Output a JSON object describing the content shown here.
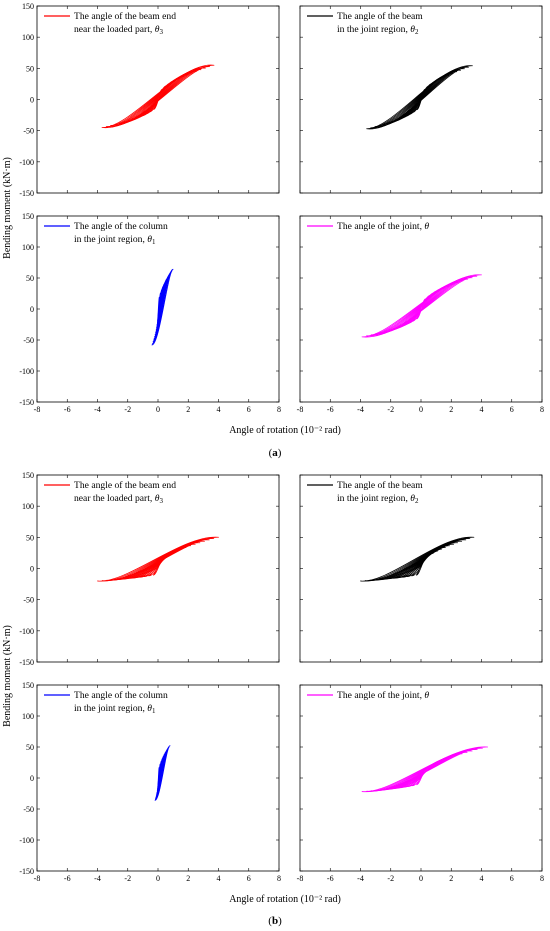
{
  "figure": {
    "ylabel": "Bending moment (kN·m)",
    "xlabel": "Angle of rotation (10⁻² rad)",
    "captions": [
      {
        "open": "(",
        "letter": "a",
        "close": ")"
      },
      {
        "open": "(",
        "letter": "b",
        "close": ")"
      }
    ]
  },
  "chart_data": [
    {
      "type": "line",
      "panel": "a-top-left",
      "xlim": [
        -8,
        8
      ],
      "ylim": [
        -150,
        150
      ],
      "xticks": [
        -8,
        -6,
        -4,
        -2,
        0,
        2,
        4,
        6,
        8
      ],
      "yticks": [
        -150,
        -100,
        -50,
        0,
        50,
        100,
        150
      ],
      "series": [
        {
          "name_line1": "The angle of the beam end",
          "name_line2": "near the loaded part, ",
          "symbol": "θ",
          "subscript": "3",
          "color": "#ff0000",
          "loop": {
            "x_min": -3.7,
            "x_max": 3.7,
            "y_at_min": -45,
            "y_at_max": 55,
            "y_max": 66,
            "y_min": -57,
            "half_width": 18,
            "cycles": 13
          }
        }
      ]
    },
    {
      "type": "line",
      "panel": "a-top-right",
      "xlim": [
        -8,
        8
      ],
      "ylim": [
        -150,
        150
      ],
      "xticks": [
        -8,
        -6,
        -4,
        -2,
        0,
        2,
        4,
        6,
        8
      ],
      "yticks": [
        -150,
        -100,
        -50,
        0,
        50,
        100,
        150
      ],
      "series": [
        {
          "name_line1": "The angle of the beam",
          "name_line2": "in the joint region, ",
          "symbol": "θ",
          "subscript": "2",
          "color": "#000000",
          "loop": {
            "x_min": -3.6,
            "x_max": 3.4,
            "y_at_min": -47,
            "y_at_max": 54,
            "y_max": 66,
            "y_min": -57,
            "half_width": 16,
            "cycles": 13
          }
        }
      ]
    },
    {
      "type": "line",
      "panel": "a-bottom-left",
      "xlim": [
        -8,
        8
      ],
      "ylim": [
        -150,
        150
      ],
      "xticks": [
        -8,
        -6,
        -4,
        -2,
        0,
        2,
        4,
        6,
        8
      ],
      "yticks": [
        -150,
        -100,
        -50,
        0,
        50,
        100,
        150
      ],
      "series": [
        {
          "name_line1": "The angle of the column",
          "name_line2": "in the joint region, ",
          "symbol": "θ",
          "subscript": "1",
          "color": "#0000ff",
          "loop": {
            "x_min": -0.4,
            "x_max": 1.0,
            "y_at_min": -58,
            "y_at_max": 64,
            "y_max": 66,
            "y_min": -60,
            "half_width": 5,
            "cycles": 12
          }
        }
      ]
    },
    {
      "type": "line",
      "panel": "a-bottom-right",
      "xlim": [
        -8,
        8
      ],
      "ylim": [
        -150,
        150
      ],
      "xticks": [
        -8,
        -6,
        -4,
        -2,
        0,
        2,
        4,
        6,
        8
      ],
      "yticks": [
        -150,
        -100,
        -50,
        0,
        50,
        100,
        150
      ],
      "series": [
        {
          "name_line1": "The angle of the joint, ",
          "name_line2": "",
          "symbol": "θ",
          "subscript": "",
          "color": "#ff00ff",
          "loop": {
            "x_min": -3.9,
            "x_max": 4.0,
            "y_at_min": -45,
            "y_at_max": 55,
            "y_max": 66,
            "y_min": -57,
            "half_width": 18,
            "cycles": 13
          }
        }
      ]
    },
    {
      "type": "line",
      "panel": "b-top-left",
      "xlim": [
        -8,
        8
      ],
      "ylim": [
        -150,
        150
      ],
      "xticks": [
        -8,
        -6,
        -4,
        -2,
        0,
        2,
        4,
        6,
        8
      ],
      "yticks": [
        -150,
        -100,
        -50,
        0,
        50,
        100,
        150
      ],
      "series": [
        {
          "name_line1": "The angle of the beam end",
          "name_line2": "near the loaded part, ",
          "symbol": "θ",
          "subscript": "3",
          "color": "#ff0000",
          "loop": {
            "x_min": -4.0,
            "x_max": 4.0,
            "y_at_min": -20,
            "y_at_max": 50,
            "y_max": 63,
            "y_min": -37,
            "half_width": 12,
            "cycles": 13
          }
        }
      ]
    },
    {
      "type": "line",
      "panel": "b-top-right",
      "xlim": [
        -8,
        8
      ],
      "ylim": [
        -150,
        150
      ],
      "xticks": [
        -8,
        -6,
        -4,
        -2,
        0,
        2,
        4,
        6,
        8
      ],
      "yticks": [
        -150,
        -100,
        -50,
        0,
        50,
        100,
        150
      ],
      "series": [
        {
          "name_line1": "The angle of the beam",
          "name_line2": "in the joint region, ",
          "symbol": "θ",
          "subscript": "2",
          "color": "#000000",
          "loop": {
            "x_min": -4.0,
            "x_max": 3.5,
            "y_at_min": -20,
            "y_at_max": 50,
            "y_max": 63,
            "y_min": -37,
            "half_width": 12,
            "cycles": 13
          }
        }
      ]
    },
    {
      "type": "line",
      "panel": "b-bottom-left",
      "xlim": [
        -8,
        8
      ],
      "ylim": [
        -150,
        150
      ],
      "xticks": [
        -8,
        -6,
        -4,
        -2,
        0,
        2,
        4,
        6,
        8
      ],
      "yticks": [
        -150,
        -100,
        -50,
        0,
        50,
        100,
        150
      ],
      "series": [
        {
          "name_line1": "The angle of the column",
          "name_line2": "in the joint region, ",
          "symbol": "θ",
          "subscript": "1",
          "color": "#0000ff",
          "loop": {
            "x_min": -0.2,
            "x_max": 0.8,
            "y_at_min": -36,
            "y_at_max": 52,
            "y_max": 63,
            "y_min": -37,
            "half_width": 5,
            "cycles": 11
          }
        }
      ]
    },
    {
      "type": "line",
      "panel": "b-bottom-right",
      "xlim": [
        -8,
        8
      ],
      "ylim": [
        -150,
        150
      ],
      "xticks": [
        -8,
        -6,
        -4,
        -2,
        0,
        2,
        4,
        6,
        8
      ],
      "yticks": [
        -150,
        -100,
        -50,
        0,
        50,
        100,
        150
      ],
      "series": [
        {
          "name_line1": "The angle of the joint, ",
          "name_line2": "",
          "symbol": "θ",
          "subscript": "",
          "color": "#ff00ff",
          "loop": {
            "x_min": -3.9,
            "x_max": 4.4,
            "y_at_min": -22,
            "y_at_max": 50,
            "y_max": 63,
            "y_min": -38,
            "half_width": 12,
            "cycles": 13
          }
        }
      ]
    }
  ]
}
